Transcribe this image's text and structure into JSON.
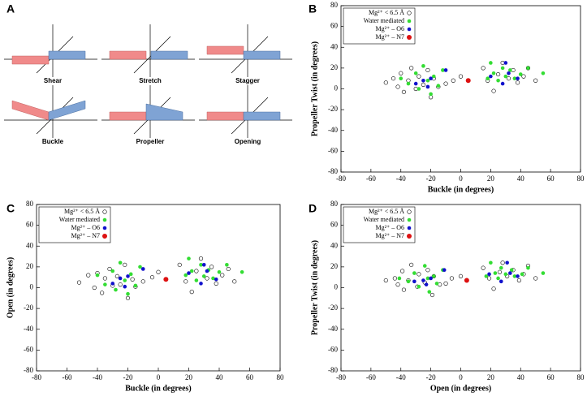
{
  "diagram": {
    "panel": "A",
    "labels": [
      "Shear",
      "Stretch",
      "Stagger",
      "Buckle",
      "Propeller",
      "Opening"
    ]
  },
  "chart_data": [
    {
      "type": "scatter",
      "panel": "B",
      "x_label": "Buckle (in degrees)",
      "y_label": "Propeller Twist (in degrees)",
      "xlim": [
        -80,
        80
      ],
      "xticks": [
        -80,
        -60,
        -40,
        -20,
        0,
        20,
        40,
        60,
        80
      ],
      "ylim": [
        -80,
        80
      ],
      "yticks": [
        -80,
        -60,
        -40,
        -20,
        0,
        20,
        40,
        60,
        80
      ],
      "series": [
        {
          "name": "Mg²⁺ < 6.5 Å",
          "color": "#000000",
          "x": [
            -50,
            -45,
            -42,
            -40,
            -38,
            -35,
            -33,
            -30,
            -28,
            -25,
            -22,
            -20,
            -18,
            -15,
            -10,
            -5,
            0,
            15,
            18,
            22,
            25,
            28,
            32,
            35,
            38,
            42,
            45,
            50
          ],
          "values": [
            6,
            10,
            2,
            15,
            -3,
            8,
            20,
            0,
            12,
            4,
            18,
            -8,
            10,
            2,
            5,
            8,
            12,
            20,
            8,
            -2,
            14,
            25,
            10,
            18,
            6,
            12,
            20,
            8
          ]
        },
        {
          "name": "Water mediated",
          "color": "#33dd33",
          "x": [
            -40,
            -35,
            -30,
            -28,
            -25,
            -22,
            -20,
            -18,
            -15,
            -12,
            18,
            20,
            22,
            25,
            28,
            30,
            33,
            36,
            40,
            45,
            55
          ],
          "values": [
            10,
            5,
            15,
            0,
            22,
            8,
            -5,
            12,
            3,
            18,
            10,
            25,
            15,
            8,
            20,
            12,
            18,
            10,
            14,
            20,
            15
          ]
        },
        {
          "name": "Mg²⁺ – O6",
          "color": "#1111cc",
          "x": [
            -30,
            -25,
            -22,
            -20,
            -10,
            20,
            28,
            30,
            32,
            38
          ],
          "values": [
            5,
            8,
            2,
            10,
            18,
            12,
            5,
            25,
            15,
            10
          ]
        },
        {
          "name": "Mg²⁺ – N7",
          "color": "#dd1111",
          "x": [
            5
          ],
          "values": [
            8
          ]
        }
      ]
    },
    {
      "type": "scatter",
      "panel": "C",
      "x_label": "Buckle (in degrees)",
      "y_label": "Open (in degrees)",
      "xlim": [
        -80,
        80
      ],
      "xticks": [
        -80,
        -60,
        -40,
        -20,
        0,
        20,
        40,
        60,
        80
      ],
      "ylim": [
        -80,
        80
      ],
      "yticks": [
        -80,
        -60,
        -40,
        -20,
        0,
        20,
        40,
        60,
        80
      ],
      "series": [
        {
          "name": "Mg²⁺ < 6.5 Å",
          "color": "#000000",
          "x": [
            -52,
            -46,
            -42,
            -40,
            -37,
            -35,
            -32,
            -30,
            -27,
            -25,
            -22,
            -20,
            -17,
            -15,
            -10,
            -4,
            0,
            14,
            18,
            22,
            25,
            28,
            32,
            35,
            38,
            42,
            46,
            50
          ],
          "values": [
            5,
            12,
            0,
            14,
            -5,
            9,
            18,
            2,
            11,
            3,
            22,
            -10,
            8,
            1,
            6,
            10,
            15,
            22,
            6,
            -4,
            16,
            28,
            9,
            20,
            4,
            12,
            18,
            6
          ]
        },
        {
          "name": "Water mediated",
          "color": "#33dd33",
          "x": [
            -40,
            -35,
            -30,
            -28,
            -25,
            -22,
            -20,
            -18,
            -15,
            -12,
            18,
            20,
            22,
            25,
            28,
            30,
            33,
            36,
            40,
            45,
            55
          ],
          "values": [
            12,
            3,
            16,
            -2,
            24,
            7,
            -6,
            13,
            2,
            20,
            12,
            28,
            16,
            7,
            22,
            11,
            17,
            9,
            15,
            22,
            15
          ]
        },
        {
          "name": "Mg²⁺ – O6",
          "color": "#1111cc",
          "x": [
            -30,
            -25,
            -22,
            -20,
            -10,
            20,
            28,
            30,
            32,
            38
          ],
          "values": [
            4,
            9,
            1,
            11,
            18,
            14,
            4,
            22,
            16,
            8
          ]
        },
        {
          "name": "Mg²⁺ – N7",
          "color": "#dd1111",
          "x": [
            5
          ],
          "values": [
            8
          ]
        }
      ]
    },
    {
      "type": "scatter",
      "panel": "D",
      "x_label": "Open (in degrees)",
      "y_label": "Propeller Twist (in degrees)",
      "xlim": [
        -80,
        80
      ],
      "xticks": [
        -80,
        -60,
        -40,
        -20,
        0,
        20,
        40,
        60,
        80
      ],
      "ylim": [
        -80,
        80
      ],
      "yticks": [
        -80,
        -60,
        -40,
        -20,
        0,
        20,
        40,
        60,
        80
      ],
      "series": [
        {
          "name": "Mg²⁺ < 6.5 Å",
          "color": "#000000",
          "x": [
            -50,
            -44,
            -42,
            -39,
            -38,
            -35,
            -33,
            -29,
            -28,
            -24,
            -22,
            -19,
            -18,
            -14,
            -10,
            -6,
            0,
            15,
            19,
            22,
            26,
            28,
            31,
            35,
            39,
            42,
            45,
            50
          ],
          "values": [
            7,
            9,
            3,
            16,
            -2,
            7,
            22,
            1,
            13,
            5,
            17,
            -7,
            11,
            3,
            4,
            9,
            11,
            19,
            9,
            -1,
            15,
            24,
            11,
            17,
            7,
            13,
            21,
            9
          ]
        },
        {
          "name": "Water mediated",
          "color": "#33dd33",
          "x": [
            -41,
            -35,
            -31,
            -28,
            -24,
            -22,
            -21,
            -18,
            -16,
            -12,
            17,
            20,
            23,
            25,
            27,
            30,
            34,
            36,
            41,
            45,
            55
          ],
          "values": [
            9,
            6,
            14,
            1,
            21,
            9,
            -4,
            11,
            4,
            17,
            11,
            24,
            14,
            9,
            19,
            13,
            17,
            11,
            13,
            19,
            14
          ]
        },
        {
          "name": "Mg²⁺ – O6",
          "color": "#1111cc",
          "x": [
            -31,
            -25,
            -23,
            -20,
            -11,
            19,
            27,
            31,
            33,
            38
          ],
          "values": [
            6,
            7,
            3,
            9,
            17,
            13,
            6,
            24,
            14,
            11
          ]
        },
        {
          "name": "Mg²⁺ – N7",
          "color": "#dd1111",
          "x": [
            4
          ],
          "values": [
            7
          ]
        }
      ]
    }
  ]
}
